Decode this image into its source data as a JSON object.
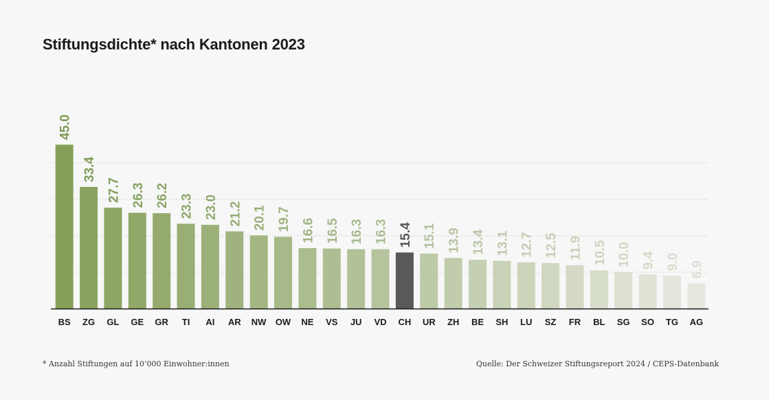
{
  "title": "Stiftungsdichte* nach Kantonen 2023",
  "footnote": "* Anzahl Stiftungen auf 10’000 Einwohner:innen",
  "source": "Quelle: Der Schweizer Stiftungsreport 2024 / CEPS-Datenbank",
  "colors": {
    "bar_start": "#86a05a",
    "bar_end": "#e6e8df",
    "highlight": "#595959",
    "label_start": "#7c9a55",
    "label_end": "#dcdfd3",
    "gridline": "#c8c8c8",
    "axis": "#1a1a1a"
  },
  "chart_data": {
    "type": "bar",
    "title": "Stiftungsdichte* nach Kantonen 2023",
    "xlabel": "",
    "ylabel": "",
    "ylim": [
      0,
      50
    ],
    "grid": true,
    "highlight_category": "CH",
    "categories": [
      "BS",
      "ZG",
      "GL",
      "GE",
      "GR",
      "TI",
      "AI",
      "AR",
      "NW",
      "OW",
      "NE",
      "VS",
      "JU",
      "VD",
      "CH",
      "UR",
      "ZH",
      "BE",
      "SH",
      "LU",
      "SZ",
      "FR",
      "BL",
      "SG",
      "SO",
      "TG",
      "AG"
    ],
    "values": [
      45.0,
      33.4,
      27.7,
      26.3,
      26.2,
      23.3,
      23.0,
      21.2,
      20.1,
      19.7,
      16.6,
      16.5,
      16.3,
      16.3,
      15.4,
      15.1,
      13.9,
      13.4,
      13.1,
      12.7,
      12.5,
      11.9,
      10.5,
      10.0,
      9.4,
      9.0,
      6.9
    ],
    "value_labels": [
      "45.0",
      "33.4",
      "27.7",
      "26.3",
      "26.2",
      "23.3",
      "23.0",
      "21.2",
      "20.1",
      "19.7",
      "16.6",
      "16.5",
      "16.3",
      "16.3",
      "15.4",
      "15.1",
      "13.9",
      "13.4",
      "13.1",
      "12.7",
      "12.5",
      "11.9",
      "10.5",
      "10.0",
      "9.4",
      "9.0",
      "6.9"
    ]
  }
}
